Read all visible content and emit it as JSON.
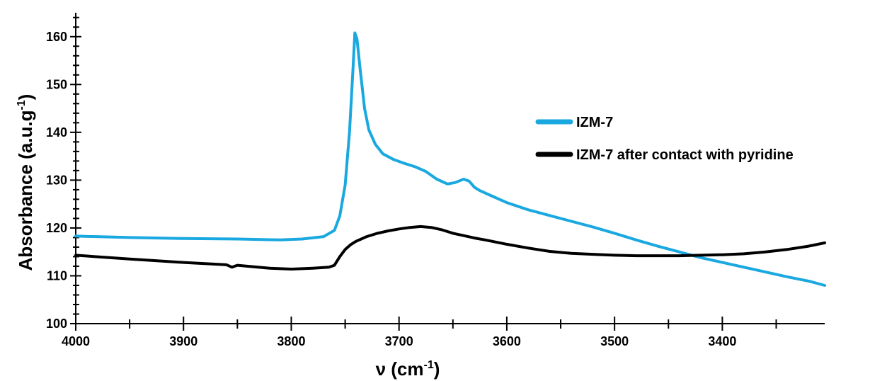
{
  "chart_data": {
    "type": "line",
    "xlabel": "ν (cm",
    "xlabel_sup": "-1",
    "xlabel_end": ")",
    "ylabel": "Absorbance (a.u.g",
    "ylabel_sup": "-1",
    "ylabel_end": ")",
    "xlim": [
      4000,
      3305
    ],
    "ylim": [
      100,
      165
    ],
    "x_reversed": true,
    "x_ticks": [
      4000,
      3900,
      3800,
      3700,
      3600,
      3500,
      3400
    ],
    "y_ticks": [
      100,
      110,
      120,
      130,
      140,
      150,
      160
    ],
    "grid": false,
    "legend_position": "right",
    "series": [
      {
        "name": "IZM-7",
        "color": "#1aa8e0",
        "x": [
          4000,
          3950,
          3900,
          3850,
          3810,
          3790,
          3770,
          3760,
          3755,
          3750,
          3746,
          3743,
          3741,
          3739,
          3736,
          3732,
          3728,
          3722,
          3715,
          3705,
          3695,
          3685,
          3675,
          3665,
          3655,
          3648,
          3640,
          3635,
          3630,
          3625,
          3615,
          3600,
          3580,
          3560,
          3540,
          3520,
          3500,
          3480,
          3460,
          3440,
          3420,
          3400,
          3380,
          3360,
          3340,
          3320,
          3305
        ],
        "y": [
          118.3,
          118.0,
          117.8,
          117.7,
          117.5,
          117.7,
          118.2,
          119.5,
          122.5,
          129.0,
          140.0,
          152.0,
          160.8,
          159.5,
          153.0,
          145.0,
          140.5,
          137.5,
          135.5,
          134.3,
          133.5,
          132.8,
          131.8,
          130.2,
          129.2,
          129.5,
          130.2,
          129.8,
          128.5,
          127.8,
          126.8,
          125.3,
          123.8,
          122.6,
          121.4,
          120.2,
          118.9,
          117.5,
          116.2,
          115.0,
          113.8,
          112.8,
          111.8,
          110.8,
          109.8,
          108.9,
          108.0
        ]
      },
      {
        "name": "IZM-7 after contact with pyridine",
        "color": "#000000",
        "x": [
          4000,
          3950,
          3900,
          3860,
          3855,
          3850,
          3820,
          3800,
          3780,
          3765,
          3760,
          3755,
          3750,
          3745,
          3740,
          3730,
          3720,
          3710,
          3700,
          3690,
          3680,
          3670,
          3660,
          3650,
          3640,
          3630,
          3620,
          3600,
          3580,
          3560,
          3540,
          3520,
          3500,
          3480,
          3460,
          3440,
          3420,
          3400,
          3380,
          3360,
          3340,
          3320,
          3305
        ],
        "y": [
          114.3,
          113.5,
          112.8,
          112.3,
          111.8,
          112.2,
          111.6,
          111.4,
          111.6,
          111.8,
          112.2,
          114.0,
          115.5,
          116.5,
          117.2,
          118.2,
          118.9,
          119.4,
          119.8,
          120.1,
          120.3,
          120.1,
          119.6,
          118.9,
          118.4,
          117.9,
          117.5,
          116.6,
          115.8,
          115.1,
          114.7,
          114.5,
          114.3,
          114.2,
          114.2,
          114.2,
          114.3,
          114.4,
          114.6,
          115.0,
          115.5,
          116.2,
          116.9
        ]
      }
    ]
  }
}
